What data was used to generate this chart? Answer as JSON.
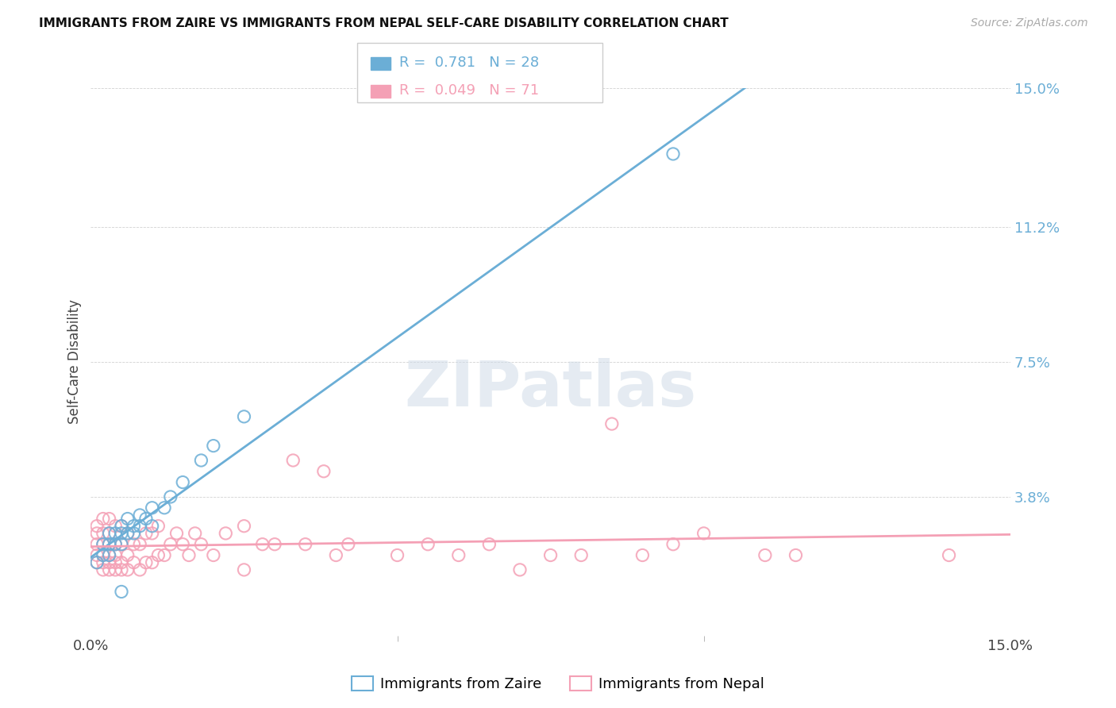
{
  "title": "IMMIGRANTS FROM ZAIRE VS IMMIGRANTS FROM NEPAL SELF-CARE DISABILITY CORRELATION CHART",
  "source": "Source: ZipAtlas.com",
  "ylabel": "Self-Care Disability",
  "xlim": [
    0.0,
    0.15
  ],
  "ylim": [
    0.0,
    0.15
  ],
  "yticks": [
    0.038,
    0.075,
    0.112,
    0.15
  ],
  "ytick_labels": [
    "3.8%",
    "7.5%",
    "11.2%",
    "15.0%"
  ],
  "xticks": [
    0.0,
    0.15
  ],
  "xtick_labels": [
    "0.0%",
    "15.0%"
  ],
  "legend_labels": [
    "Immigrants from Zaire",
    "Immigrants from Nepal"
  ],
  "zaire_color": "#6baed6",
  "nepal_color": "#f4a0b5",
  "zaire_R": 0.781,
  "zaire_N": 28,
  "nepal_R": 0.049,
  "nepal_N": 71,
  "watermark": "ZIPatlas",
  "background_color": "#ffffff",
  "zaire_scatter_x": [
    0.001,
    0.002,
    0.002,
    0.003,
    0.003,
    0.003,
    0.004,
    0.004,
    0.005,
    0.005,
    0.005,
    0.006,
    0.006,
    0.007,
    0.007,
    0.008,
    0.008,
    0.009,
    0.01,
    0.01,
    0.012,
    0.013,
    0.015,
    0.018,
    0.02,
    0.025,
    0.095,
    0.005
  ],
  "zaire_scatter_y": [
    0.02,
    0.022,
    0.025,
    0.022,
    0.025,
    0.028,
    0.025,
    0.028,
    0.025,
    0.028,
    0.03,
    0.028,
    0.032,
    0.028,
    0.03,
    0.03,
    0.033,
    0.032,
    0.03,
    0.035,
    0.035,
    0.038,
    0.042,
    0.048,
    0.052,
    0.06,
    0.132,
    0.012
  ],
  "nepal_scatter_x": [
    0.001,
    0.001,
    0.001,
    0.001,
    0.001,
    0.002,
    0.002,
    0.002,
    0.002,
    0.002,
    0.002,
    0.003,
    0.003,
    0.003,
    0.003,
    0.003,
    0.003,
    0.004,
    0.004,
    0.004,
    0.004,
    0.004,
    0.005,
    0.005,
    0.005,
    0.005,
    0.006,
    0.006,
    0.006,
    0.007,
    0.007,
    0.008,
    0.008,
    0.009,
    0.009,
    0.01,
    0.01,
    0.011,
    0.011,
    0.012,
    0.013,
    0.014,
    0.015,
    0.016,
    0.017,
    0.018,
    0.02,
    0.022,
    0.025,
    0.028,
    0.03,
    0.033,
    0.035,
    0.038,
    0.04,
    0.042,
    0.05,
    0.055,
    0.06,
    0.065,
    0.07,
    0.075,
    0.08,
    0.085,
    0.09,
    0.095,
    0.1,
    0.11,
    0.115,
    0.14,
    0.025
  ],
  "nepal_scatter_y": [
    0.02,
    0.022,
    0.025,
    0.028,
    0.03,
    0.018,
    0.02,
    0.022,
    0.025,
    0.028,
    0.032,
    0.018,
    0.02,
    0.022,
    0.025,
    0.028,
    0.032,
    0.018,
    0.02,
    0.022,
    0.025,
    0.03,
    0.018,
    0.02,
    0.025,
    0.03,
    0.018,
    0.022,
    0.028,
    0.02,
    0.025,
    0.018,
    0.025,
    0.02,
    0.028,
    0.02,
    0.028,
    0.022,
    0.03,
    0.022,
    0.025,
    0.028,
    0.025,
    0.022,
    0.028,
    0.025,
    0.022,
    0.028,
    0.03,
    0.025,
    0.025,
    0.048,
    0.025,
    0.045,
    0.022,
    0.025,
    0.022,
    0.025,
    0.022,
    0.025,
    0.018,
    0.022,
    0.022,
    0.058,
    0.022,
    0.025,
    0.028,
    0.022,
    0.022,
    0.022,
    0.018
  ]
}
